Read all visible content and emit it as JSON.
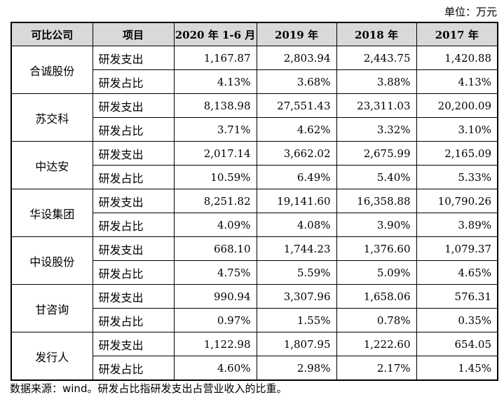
{
  "unit_label": "单位：万元",
  "table": {
    "headers": [
      "可比公司",
      "项目",
      "2020 年 1-6 月",
      "2019 年",
      "2018 年",
      "2017 年"
    ],
    "companies": [
      {
        "name": "合诚股份",
        "rows": [
          {
            "item": "研发支出",
            "values": [
              "1,167.87",
              "2,803.94",
              "2,443.75",
              "1,420.88"
            ]
          },
          {
            "item": "研发占比",
            "values": [
              "4.13%",
              "3.68%",
              "3.88%",
              "4.13%"
            ]
          }
        ]
      },
      {
        "name": "苏交科",
        "rows": [
          {
            "item": "研发支出",
            "values": [
              "8,138.98",
              "27,551.43",
              "23,311.03",
              "20,200.09"
            ]
          },
          {
            "item": "研发占比",
            "values": [
              "3.71%",
              "4.62%",
              "3.32%",
              "3.10%"
            ]
          }
        ]
      },
      {
        "name": "中达安",
        "rows": [
          {
            "item": "研发支出",
            "values": [
              "2,017.14",
              "3,662.02",
              "2,675.99",
              "2,165.09"
            ]
          },
          {
            "item": "研发占比",
            "values": [
              "10.59%",
              "6.49%",
              "5.40%",
              "5.33%"
            ]
          }
        ]
      },
      {
        "name": "华设集团",
        "rows": [
          {
            "item": "研发支出",
            "values": [
              "8,251.82",
              "19,141.60",
              "16,358.88",
              "10,790.26"
            ]
          },
          {
            "item": "研发占比",
            "values": [
              "4.09%",
              "4.08%",
              "3.90%",
              "3.89%"
            ]
          }
        ]
      },
      {
        "name": "中设股份",
        "rows": [
          {
            "item": "研发支出",
            "values": [
              "668.10",
              "1,744.23",
              "1,376.60",
              "1,079.37"
            ]
          },
          {
            "item": "研发占比",
            "values": [
              "4.75%",
              "5.59%",
              "5.09%",
              "4.65%"
            ]
          }
        ]
      },
      {
        "name": "甘咨询",
        "rows": [
          {
            "item": "研发支出",
            "values": [
              "990.94",
              "3,307.96",
              "1,658.06",
              "576.31"
            ]
          },
          {
            "item": "研发占比",
            "values": [
              "0.97%",
              "1.55%",
              "0.78%",
              "0.35%"
            ]
          }
        ]
      },
      {
        "name": "发行人",
        "rows": [
          {
            "item": "研发支出",
            "values": [
              "1,122.98",
              "1,807.95",
              "1,222.60",
              "654.05"
            ]
          },
          {
            "item": "研发占比",
            "values": [
              "4.60%",
              "2.98%",
              "2.17%",
              "1.45%"
            ]
          }
        ]
      }
    ]
  },
  "footnote": "数据来源：wind。研发占比指研发支出占营业收入的比重。"
}
